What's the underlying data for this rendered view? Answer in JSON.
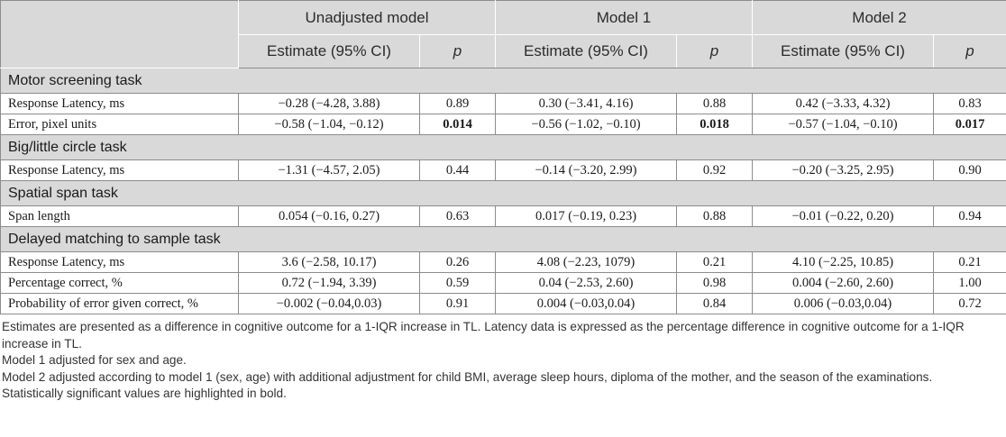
{
  "header": {
    "groups": [
      "Unadjusted model",
      "Model 1",
      "Model 2"
    ],
    "estimate_label": "Estimate (95% CI)",
    "p_label": "p"
  },
  "sections": [
    {
      "title": "Motor screening task",
      "rows": [
        {
          "label": "Response Latency, ms",
          "cells": [
            "−0.28 (−4.28, 3.88)",
            "0.89",
            "0.30 (−3.41, 4.16)",
            "0.88",
            "0.42 (−3.33, 4.32)",
            "0.83"
          ]
        },
        {
          "label": "Error, pixel units",
          "cells": [
            "−0.58 (−1.04, −0.12)",
            "0.014",
            "−0.56 (−1.02, −0.10)",
            "0.018",
            "−0.57 (−1.04, −0.10)",
            "0.017"
          ]
        }
      ]
    },
    {
      "title": "Big/little circle task",
      "rows": [
        {
          "label": "Response Latency, ms",
          "cells": [
            "−1.31 (−4.57, 2.05)",
            "0.44",
            "−0.14 (−3.20, 2.99)",
            "0.92",
            "−0.20 (−3.25, 2.95)",
            "0.90"
          ]
        }
      ]
    },
    {
      "title": "Spatial span task",
      "rows": [
        {
          "label": "Span length",
          "cells": [
            "0.054 (−0.16, 0.27)",
            "0.63",
            "0.017 (−0.19, 0.23)",
            "0.88",
            "−0.01 (−0.22, 0.20)",
            "0.94"
          ]
        }
      ]
    },
    {
      "title": "Delayed matching to sample task",
      "rows": [
        {
          "label": "Response Latency, ms",
          "cells": [
            "3.6 (−2.58, 10.17)",
            "0.26",
            "4.08 (−2.23, 1079)",
            "0.21",
            "4.10 (−2.25, 10.85)",
            "0.21"
          ]
        },
        {
          "label": "Percentage correct, %",
          "cells": [
            "0.72 (−1.94, 3.39)",
            "0.59",
            "0.04 (−2.53, 2.60)",
            "0.98",
            "0.004 (−2.60, 2.60)",
            "1.00"
          ]
        },
        {
          "label": "Probability of error given correct, %",
          "cells": [
            "−0.002 (−0.04,0.03)",
            "0.91",
            "0.004 (−0.03,0.04)",
            "0.84",
            "0.006 (−0.03,0.04)",
            "0.72"
          ]
        }
      ]
    }
  ],
  "notes": [
    "Estimates are presented as a difference in cognitive outcome for a 1-IQR increase in TL. Latency data is expressed as the percentage difference in cognitive outcome for a 1-IQR increase in TL.",
    "Model 1 adjusted for sex and age.",
    "Model 2 adjusted according to model 1 (sex, age) with additional adjustment for child BMI, average sleep hours, diploma of the mother, and the season of the examinations.",
    "Statistically significant values are highlighted in bold."
  ]
}
